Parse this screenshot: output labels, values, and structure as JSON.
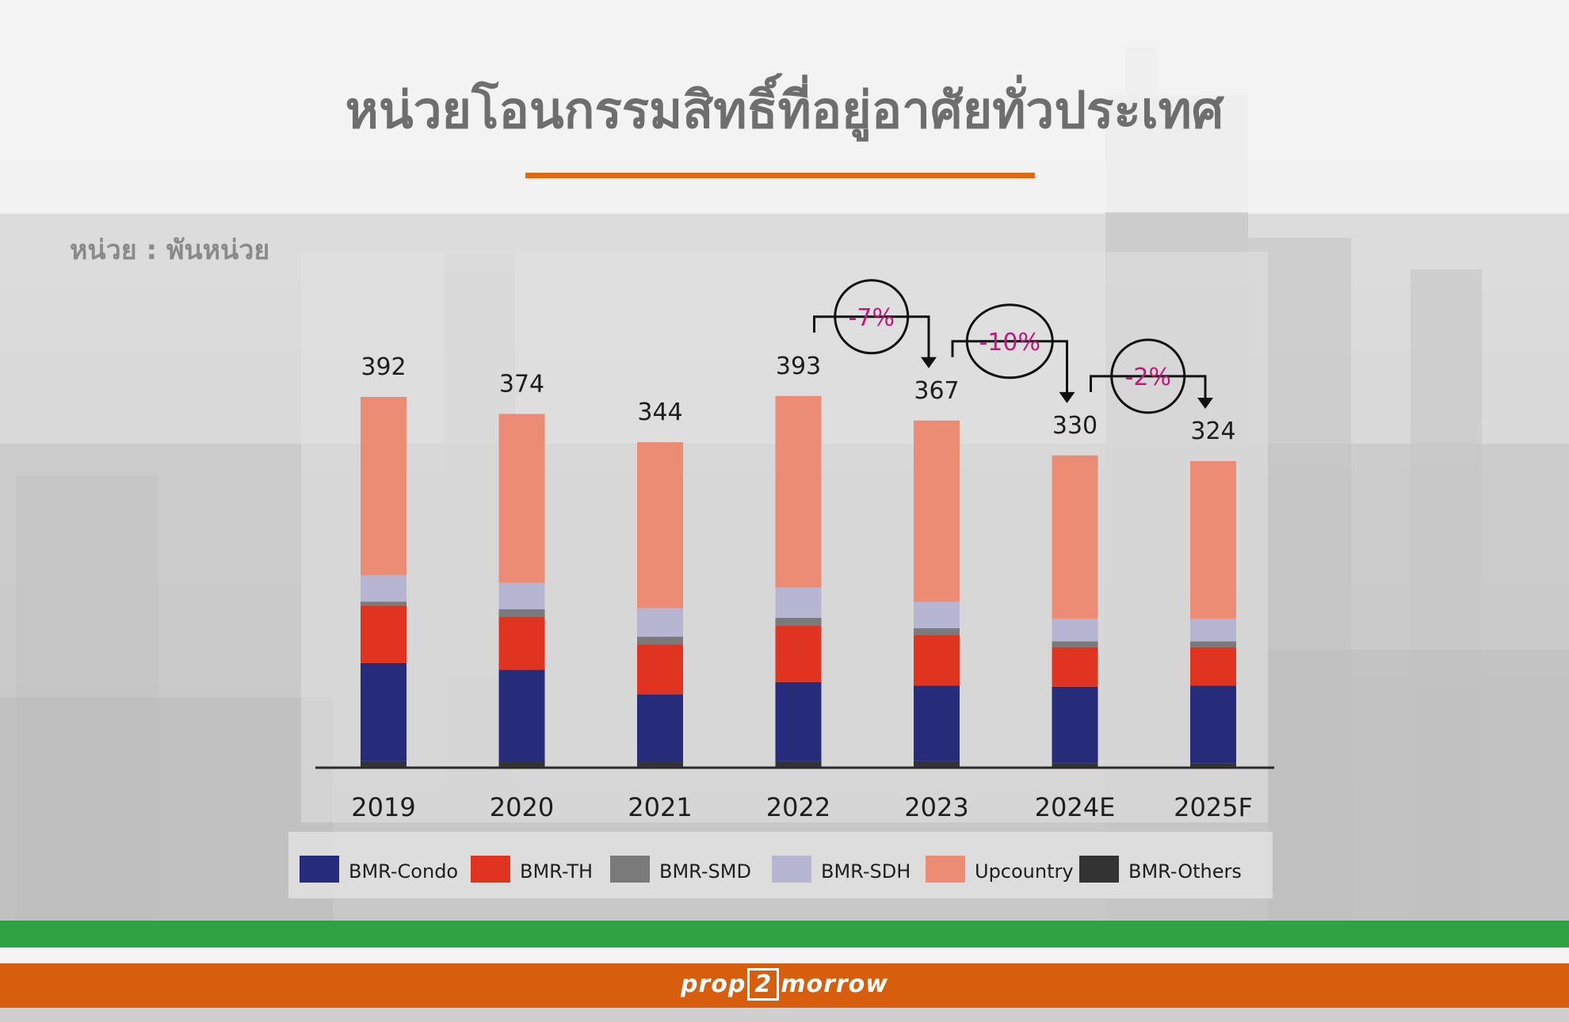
{
  "title": "หน่วยโอนกรรมสิทธิ์ที่อยู่อาศัยทั่วประเทศ",
  "unit_label": "หน่วย : พันหน่วย",
  "logo_text": {
    "before": "prop",
    "boxed": "2",
    "after": "morrow"
  },
  "colors": {
    "accent_orange": "#d65e0c",
    "accent_green": "#2fa343",
    "annotation_pink": "#c2187a"
  },
  "chart_data": {
    "type": "bar",
    "stacked": true,
    "categories": [
      "2019",
      "2020",
      "2021",
      "2022",
      "2023",
      "2024E",
      "2025F"
    ],
    "totals": [
      392,
      374,
      344,
      393,
      367,
      330,
      324
    ],
    "series": [
      {
        "name": "BMR-Others",
        "color": "#333333",
        "values": [
          6,
          5,
          5,
          6,
          6,
          4,
          4
        ]
      },
      {
        "name": "BMR-Condo",
        "color": "#262c7a",
        "values": [
          104,
          98,
          72,
          84,
          80,
          81,
          82
        ]
      },
      {
        "name": "BMR-TH",
        "color": "#e03320",
        "values": [
          61,
          56,
          53,
          60,
          54,
          42,
          41
        ]
      },
      {
        "name": "BMR-SMD",
        "color": "#7a7a7a",
        "values": [
          4,
          8,
          8,
          8,
          7,
          6,
          6
        ]
      },
      {
        "name": "BMR-SDH",
        "color": "#b6b6d2",
        "values": [
          28,
          28,
          30,
          32,
          28,
          24,
          24
        ]
      },
      {
        "name": "Upcountry",
        "color": "#ed8c74",
        "values": [
          189,
          179,
          176,
          203,
          192,
          173,
          167
        ]
      }
    ],
    "annotations": [
      {
        "from": "2022",
        "to": "2023",
        "label": "-7%"
      },
      {
        "from": "2023",
        "to": "2024E",
        "label": "-10%"
      },
      {
        "from": "2024E",
        "to": "2025F",
        "label": "-2%"
      }
    ],
    "legend": [
      "BMR-Condo",
      "BMR-TH",
      "BMR-SMD",
      "BMR-SDH",
      "Upcountry",
      "BMR-Others"
    ],
    "legend_position": "bottom",
    "ylim": [
      0,
      400
    ],
    "grid": false,
    "xlabel": "",
    "ylabel": ""
  }
}
